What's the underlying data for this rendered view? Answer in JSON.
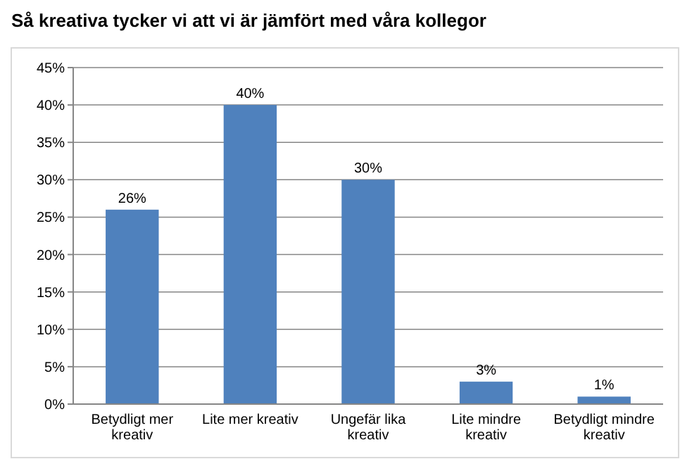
{
  "chart_data": {
    "type": "bar",
    "title": "Så kreativa  tycker  vi att vi är jämfört med våra kollegor",
    "categories": [
      "Betydligt mer kreativ",
      "Lite mer kreativ",
      "Ungefär lika kreativ",
      "Lite mindre kreativ",
      "Betydligt mindre kreativ"
    ],
    "values": [
      26,
      40,
      30,
      3,
      1
    ],
    "value_labels": [
      "26%",
      "40%",
      "30%",
      "3%",
      "1%"
    ],
    "color": "#4f81bd",
    "ylim": [
      0,
      45
    ],
    "yticks": [
      {
        "value": 0,
        "label": "0%"
      },
      {
        "value": 5,
        "label": "5%"
      },
      {
        "value": 10,
        "label": "10%"
      },
      {
        "value": 15,
        "label": "15%"
      },
      {
        "value": 20,
        "label": "20%"
      },
      {
        "value": 25,
        "label": "25%"
      },
      {
        "value": 30,
        "label": "30%"
      },
      {
        "value": 35,
        "label": "35%"
      },
      {
        "value": 40,
        "label": "40%"
      },
      {
        "value": 45,
        "label": "45%"
      }
    ],
    "grid": "y"
  }
}
